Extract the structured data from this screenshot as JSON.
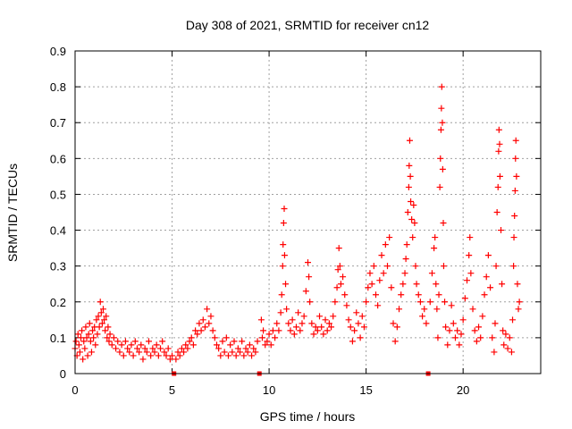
{
  "chart_data": {
    "type": "scatter",
    "title": "Day 308 of 2021, SRMTID for receiver cn12",
    "xlabel": "GPS time / hours",
    "ylabel": "SRMTID / TECUs",
    "xlim": [
      0,
      24
    ],
    "ylim": [
      0,
      0.9
    ],
    "xticks": [
      0,
      5,
      10,
      15,
      20
    ],
    "xtick_labels": [
      "0",
      "5",
      "10",
      "15",
      "20"
    ],
    "yticks": [
      0,
      0.1,
      0.2,
      0.3,
      0.4,
      0.5,
      0.6,
      0.7,
      0.8,
      0.9
    ],
    "ytick_labels": [
      "0",
      "0.1",
      "0.2",
      "0.3",
      "0.4",
      "0.5",
      "0.6",
      "0.7",
      "0.8",
      "0.9"
    ],
    "grid": true,
    "marker": "+",
    "color": "#ff0000",
    "data_gap_markers_x": [
      5.1,
      9.5,
      18.2
    ],
    "series": [
      {
        "name": "SRMTID",
        "points": [
          [
            0.0,
            0.07
          ],
          [
            0.05,
            0.09
          ],
          [
            0.1,
            0.05
          ],
          [
            0.15,
            0.11
          ],
          [
            0.2,
            0.08
          ],
          [
            0.25,
            0.06
          ],
          [
            0.3,
            0.1
          ],
          [
            0.35,
            0.12
          ],
          [
            0.4,
            0.04
          ],
          [
            0.45,
            0.09
          ],
          [
            0.5,
            0.07
          ],
          [
            0.55,
            0.13
          ],
          [
            0.6,
            0.1
          ],
          [
            0.65,
            0.05
          ],
          [
            0.7,
            0.11
          ],
          [
            0.75,
            0.14
          ],
          [
            0.8,
            0.09
          ],
          [
            0.85,
            0.06
          ],
          [
            0.9,
            0.12
          ],
          [
            0.95,
            0.1
          ],
          [
            1.0,
            0.13
          ],
          [
            1.05,
            0.08
          ],
          [
            1.1,
            0.15
          ],
          [
            1.15,
            0.11
          ],
          [
            1.2,
            0.16
          ],
          [
            1.25,
            0.13
          ],
          [
            1.3,
            0.2
          ],
          [
            1.35,
            0.17
          ],
          [
            1.4,
            0.14
          ],
          [
            1.45,
            0.18
          ],
          [
            1.5,
            0.15
          ],
          [
            1.55,
            0.12
          ],
          [
            1.6,
            0.16
          ],
          [
            1.65,
            0.1
          ],
          [
            1.7,
            0.13
          ],
          [
            1.75,
            0.09
          ],
          [
            1.8,
            0.11
          ],
          [
            1.9,
            0.08
          ],
          [
            2.0,
            0.1
          ],
          [
            2.1,
            0.07
          ],
          [
            2.2,
            0.09
          ],
          [
            2.3,
            0.06
          ],
          [
            2.4,
            0.08
          ],
          [
            2.5,
            0.05
          ],
          [
            2.6,
            0.09
          ],
          [
            2.7,
            0.07
          ],
          [
            2.8,
            0.06
          ],
          [
            2.9,
            0.08
          ],
          [
            3.0,
            0.05
          ],
          [
            3.1,
            0.09
          ],
          [
            3.2,
            0.07
          ],
          [
            3.3,
            0.06
          ],
          [
            3.4,
            0.08
          ],
          [
            3.5,
            0.04
          ],
          [
            3.6,
            0.07
          ],
          [
            3.7,
            0.06
          ],
          [
            3.8,
            0.09
          ],
          [
            3.9,
            0.05
          ],
          [
            4.0,
            0.07
          ],
          [
            4.1,
            0.06
          ],
          [
            4.2,
            0.08
          ],
          [
            4.3,
            0.05
          ],
          [
            4.4,
            0.07
          ],
          [
            4.5,
            0.09
          ],
          [
            4.6,
            0.06
          ],
          [
            4.7,
            0.05
          ],
          [
            4.8,
            0.07
          ],
          [
            4.9,
            0.04
          ],
          [
            5.0,
            0.05
          ],
          [
            5.2,
            0.04
          ],
          [
            5.3,
            0.06
          ],
          [
            5.4,
            0.05
          ],
          [
            5.5,
            0.07
          ],
          [
            5.6,
            0.06
          ],
          [
            5.7,
            0.08
          ],
          [
            5.8,
            0.07
          ],
          [
            5.9,
            0.09
          ],
          [
            6.0,
            0.1
          ],
          [
            6.1,
            0.08
          ],
          [
            6.2,
            0.12
          ],
          [
            6.3,
            0.11
          ],
          [
            6.4,
            0.14
          ],
          [
            6.5,
            0.12
          ],
          [
            6.6,
            0.15
          ],
          [
            6.7,
            0.13
          ],
          [
            6.8,
            0.18
          ],
          [
            6.9,
            0.14
          ],
          [
            7.0,
            0.16
          ],
          [
            7.1,
            0.12
          ],
          [
            7.2,
            0.1
          ],
          [
            7.3,
            0.08
          ],
          [
            7.4,
            0.07
          ],
          [
            7.5,
            0.05
          ],
          [
            7.6,
            0.09
          ],
          [
            7.7,
            0.06
          ],
          [
            7.8,
            0.1
          ],
          [
            7.9,
            0.05
          ],
          [
            8.0,
            0.08
          ],
          [
            8.1,
            0.06
          ],
          [
            8.2,
            0.09
          ],
          [
            8.3,
            0.05
          ],
          [
            8.4,
            0.07
          ],
          [
            8.5,
            0.06
          ],
          [
            8.6,
            0.09
          ],
          [
            8.7,
            0.05
          ],
          [
            8.8,
            0.07
          ],
          [
            8.9,
            0.06
          ],
          [
            9.0,
            0.08
          ],
          [
            9.1,
            0.05
          ],
          [
            9.2,
            0.07
          ],
          [
            9.3,
            0.06
          ],
          [
            9.4,
            0.09
          ],
          [
            9.6,
            0.15
          ],
          [
            9.65,
            0.1
          ],
          [
            9.7,
            0.12
          ],
          [
            9.8,
            0.08
          ],
          [
            9.9,
            0.09
          ],
          [
            10.0,
            0.11
          ],
          [
            10.1,
            0.08
          ],
          [
            10.2,
            0.12
          ],
          [
            10.3,
            0.1
          ],
          [
            10.4,
            0.14
          ],
          [
            10.5,
            0.12
          ],
          [
            10.6,
            0.17
          ],
          [
            10.65,
            0.22
          ],
          [
            10.7,
            0.3
          ],
          [
            10.72,
            0.36
          ],
          [
            10.75,
            0.42
          ],
          [
            10.78,
            0.46
          ],
          [
            10.8,
            0.33
          ],
          [
            10.85,
            0.25
          ],
          [
            10.9,
            0.18
          ],
          [
            11.0,
            0.14
          ],
          [
            11.1,
            0.12
          ],
          [
            11.2,
            0.15
          ],
          [
            11.3,
            0.11
          ],
          [
            11.4,
            0.13
          ],
          [
            11.5,
            0.17
          ],
          [
            11.6,
            0.12
          ],
          [
            11.7,
            0.14
          ],
          [
            11.8,
            0.16
          ],
          [
            11.9,
            0.23
          ],
          [
            12.0,
            0.31
          ],
          [
            12.05,
            0.27
          ],
          [
            12.1,
            0.2
          ],
          [
            12.2,
            0.14
          ],
          [
            12.3,
            0.11
          ],
          [
            12.4,
            0.13
          ],
          [
            12.5,
            0.12
          ],
          [
            12.6,
            0.16
          ],
          [
            12.7,
            0.13
          ],
          [
            12.8,
            0.11
          ],
          [
            12.9,
            0.15
          ],
          [
            13.0,
            0.12
          ],
          [
            13.1,
            0.14
          ],
          [
            13.2,
            0.13
          ],
          [
            13.3,
            0.16
          ],
          [
            13.4,
            0.2
          ],
          [
            13.5,
            0.24
          ],
          [
            13.55,
            0.29
          ],
          [
            13.6,
            0.35
          ],
          [
            13.65,
            0.3
          ],
          [
            13.7,
            0.25
          ],
          [
            13.8,
            0.27
          ],
          [
            13.9,
            0.22
          ],
          [
            14.0,
            0.19
          ],
          [
            14.1,
            0.15
          ],
          [
            14.2,
            0.13
          ],
          [
            14.3,
            0.09
          ],
          [
            14.4,
            0.12
          ],
          [
            14.5,
            0.17
          ],
          [
            14.6,
            0.14
          ],
          [
            14.7,
            0.1
          ],
          [
            14.8,
            0.16
          ],
          [
            14.9,
            0.13
          ],
          [
            15.0,
            0.2
          ],
          [
            15.1,
            0.24
          ],
          [
            15.2,
            0.28
          ],
          [
            15.3,
            0.25
          ],
          [
            15.4,
            0.3
          ],
          [
            15.5,
            0.22
          ],
          [
            15.6,
            0.19
          ],
          [
            15.7,
            0.26
          ],
          [
            15.8,
            0.33
          ],
          [
            15.9,
            0.28
          ],
          [
            16.0,
            0.36
          ],
          [
            16.1,
            0.3
          ],
          [
            16.2,
            0.38
          ],
          [
            16.3,
            0.24
          ],
          [
            16.4,
            0.14
          ],
          [
            16.5,
            0.09
          ],
          [
            16.6,
            0.13
          ],
          [
            16.7,
            0.18
          ],
          [
            16.8,
            0.22
          ],
          [
            16.9,
            0.25
          ],
          [
            17.0,
            0.28
          ],
          [
            17.05,
            0.32
          ],
          [
            17.1,
            0.36
          ],
          [
            17.15,
            0.45
          ],
          [
            17.2,
            0.52
          ],
          [
            17.22,
            0.58
          ],
          [
            17.25,
            0.65
          ],
          [
            17.28,
            0.55
          ],
          [
            17.3,
            0.48
          ],
          [
            17.35,
            0.43
          ],
          [
            17.4,
            0.38
          ],
          [
            17.45,
            0.47
          ],
          [
            17.5,
            0.42
          ],
          [
            17.55,
            0.3
          ],
          [
            17.6,
            0.25
          ],
          [
            17.7,
            0.22
          ],
          [
            17.8,
            0.2
          ],
          [
            17.9,
            0.16
          ],
          [
            18.0,
            0.18
          ],
          [
            18.1,
            0.14
          ],
          [
            18.3,
            0.2
          ],
          [
            18.4,
            0.28
          ],
          [
            18.5,
            0.35
          ],
          [
            18.55,
            0.38
          ],
          [
            18.6,
            0.25
          ],
          [
            18.65,
            0.18
          ],
          [
            18.7,
            0.1
          ],
          [
            18.75,
            0.22
          ],
          [
            18.8,
            0.52
          ],
          [
            18.83,
            0.6
          ],
          [
            18.86,
            0.68
          ],
          [
            18.88,
            0.74
          ],
          [
            18.9,
            0.8
          ],
          [
            18.93,
            0.7
          ],
          [
            18.95,
            0.57
          ],
          [
            18.98,
            0.42
          ],
          [
            19.0,
            0.3
          ],
          [
            19.05,
            0.2
          ],
          [
            19.1,
            0.13
          ],
          [
            19.2,
            0.08
          ],
          [
            19.3,
            0.12
          ],
          [
            19.4,
            0.19
          ],
          [
            19.5,
            0.14
          ],
          [
            19.6,
            0.1
          ],
          [
            19.7,
            0.12
          ],
          [
            19.8,
            0.08
          ],
          [
            19.9,
            0.11
          ],
          [
            20.0,
            0.15
          ],
          [
            20.1,
            0.21
          ],
          [
            20.2,
            0.26
          ],
          [
            20.3,
            0.33
          ],
          [
            20.35,
            0.38
          ],
          [
            20.4,
            0.28
          ],
          [
            20.5,
            0.18
          ],
          [
            20.6,
            0.12
          ],
          [
            20.7,
            0.09
          ],
          [
            20.8,
            0.13
          ],
          [
            20.9,
            0.1
          ],
          [
            21.0,
            0.16
          ],
          [
            21.1,
            0.22
          ],
          [
            21.2,
            0.27
          ],
          [
            21.3,
            0.33
          ],
          [
            21.4,
            0.24
          ],
          [
            21.5,
            0.1
          ],
          [
            21.6,
            0.06
          ],
          [
            21.65,
            0.14
          ],
          [
            21.7,
            0.3
          ],
          [
            21.75,
            0.45
          ],
          [
            21.8,
            0.52
          ],
          [
            21.83,
            0.62
          ],
          [
            21.85,
            0.68
          ],
          [
            21.88,
            0.64
          ],
          [
            21.9,
            0.55
          ],
          [
            21.95,
            0.4
          ],
          [
            22.0,
            0.25
          ],
          [
            22.05,
            0.12
          ],
          [
            22.1,
            0.08
          ],
          [
            22.2,
            0.11
          ],
          [
            22.3,
            0.07
          ],
          [
            22.4,
            0.1
          ],
          [
            22.5,
            0.06
          ],
          [
            22.55,
            0.15
          ],
          [
            22.6,
            0.3
          ],
          [
            22.62,
            0.38
          ],
          [
            22.65,
            0.44
          ],
          [
            22.68,
            0.51
          ],
          [
            22.7,
            0.6
          ],
          [
            22.72,
            0.65
          ],
          [
            22.75,
            0.55
          ],
          [
            22.8,
            0.25
          ],
          [
            22.85,
            0.18
          ],
          [
            22.9,
            0.2
          ]
        ]
      }
    ]
  }
}
